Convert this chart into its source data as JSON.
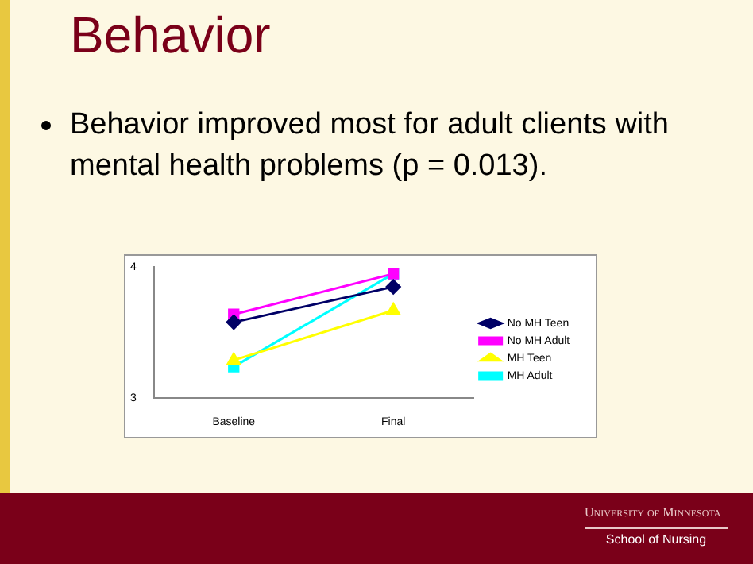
{
  "chart_data": {
    "type": "line",
    "title": "Behavior",
    "subtitle": "Behavior improved most for adult clients with mental health problems (p = 0.013).",
    "categories": [
      "Baseline",
      "Final"
    ],
    "series": [
      {
        "name": "No MH Teen",
        "color": "#000066",
        "values": [
          3.58,
          3.85
        ],
        "marker": "diamond"
      },
      {
        "name": "No MH Adult",
        "color": "#ff00ff",
        "values": [
          3.64,
          3.95
        ],
        "marker": "square"
      },
      {
        "name": "MH Teen",
        "color": "#ffff00",
        "values": [
          3.29,
          3.67
        ],
        "marker": "triangle"
      },
      {
        "name": "MH Adult",
        "color": "#00ffff",
        "values": [
          3.24,
          3.95
        ],
        "marker": "square"
      }
    ],
    "ylim": [
      3,
      4
    ],
    "yticks": [
      3,
      4
    ],
    "grid": false,
    "legend": "right",
    "line_style": "solid",
    "annotations": [
      "University of Minnesota",
      "School of Nursing"
    ]
  }
}
